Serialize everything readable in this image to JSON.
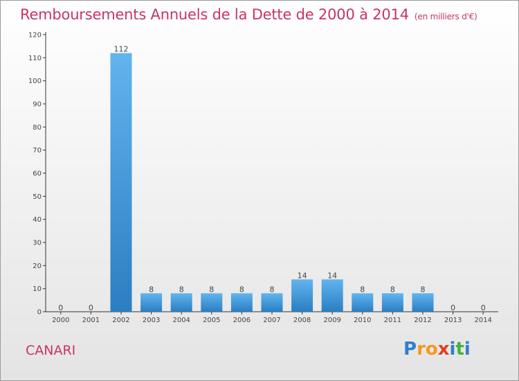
{
  "page": {
    "title": "Remboursements Annuels de la Dette de 2000 à 2014",
    "title_unit": "(en milliers d'€)",
    "commune": "CANARI",
    "logo": {
      "text": "Proxiti",
      "letters": [
        "P",
        "r",
        "o",
        "x",
        "i",
        "t",
        "i"
      ]
    }
  },
  "colors": {
    "title": "#c8336a",
    "bar_light": "#62b4ee",
    "bar_dark": "#2a7ec2",
    "logo": [
      "#2e7fd0",
      "#f39a1e",
      "#f39a1e",
      "#e0401f",
      "#2e7fd0",
      "#4caf3a",
      "#2e7fd0"
    ]
  },
  "chart_data": {
    "type": "bar",
    "categories": [
      "2000",
      "2001",
      "2002",
      "2003",
      "2004",
      "2005",
      "2006",
      "2007",
      "2008",
      "2009",
      "2010",
      "2011",
      "2012",
      "2013",
      "2014"
    ],
    "values": [
      0,
      0,
      112,
      8,
      8,
      8,
      8,
      8,
      14,
      14,
      8,
      8,
      8,
      0,
      0
    ],
    "data_labels": [
      "0",
      "0",
      "112",
      "8",
      "8",
      "8",
      "8",
      "8",
      "14",
      "14",
      "8",
      "8",
      "8",
      "0",
      "0"
    ],
    "y_ticks": [
      0,
      10,
      20,
      30,
      40,
      50,
      60,
      70,
      80,
      90,
      100,
      110,
      120
    ],
    "ylim": [
      0,
      120
    ],
    "grid": false,
    "legend": "none"
  }
}
